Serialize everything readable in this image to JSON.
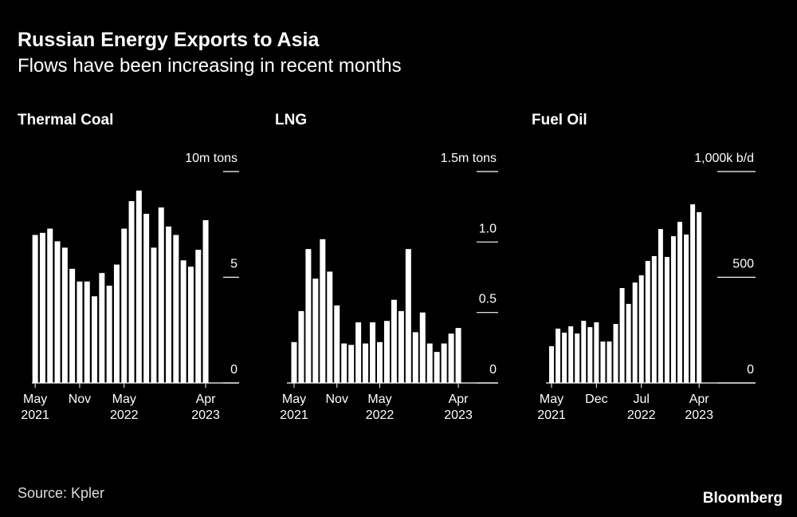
{
  "title": "Russian Energy Exports to Asia",
  "subtitle": "Flows have been increasing in recent months",
  "source": "Source: Kpler",
  "brand": "Bloomberg",
  "chart_data": [
    {
      "type": "bar",
      "title": "Thermal Coal",
      "color": "#ffffff",
      "categories": [
        "May 2021",
        null,
        null,
        null,
        null,
        null,
        "Nov",
        null,
        null,
        null,
        null,
        null,
        "May 2022",
        null,
        null,
        null,
        null,
        null,
        null,
        null,
        null,
        null,
        null,
        "Apr 2023"
      ],
      "values": [
        7.0,
        7.1,
        7.3,
        6.7,
        6.4,
        5.4,
        4.8,
        4.8,
        4.1,
        5.2,
        4.6,
        5.6,
        7.3,
        8.6,
        9.1,
        8.0,
        6.4,
        8.3,
        7.4,
        7.0,
        5.8,
        5.5,
        6.3,
        7.7
      ],
      "ylim": [
        0,
        10
      ],
      "yticks": [
        0,
        5,
        {
          "value": 10,
          "label": "10m tons"
        }
      ]
    },
    {
      "type": "bar",
      "title": "LNG",
      "color": "#ffffff",
      "categories": [
        "May 2021",
        null,
        null,
        null,
        null,
        null,
        "Nov",
        null,
        null,
        null,
        null,
        null,
        "May 2022",
        null,
        null,
        null,
        null,
        null,
        null,
        null,
        null,
        null,
        null,
        "Apr 2023"
      ],
      "values": [
        0.29,
        0.51,
        0.95,
        0.74,
        1.02,
        0.79,
        0.55,
        0.28,
        0.27,
        0.43,
        0.28,
        0.43,
        0.29,
        0.44,
        0.59,
        0.51,
        0.95,
        0.36,
        0.5,
        0.28,
        0.22,
        0.28,
        0.35,
        0.39
      ],
      "ylim": [
        0,
        1.5
      ],
      "yticks": [
        0,
        0.5,
        {
          "value": 1.0,
          "label": "1.0"
        },
        {
          "value": 1.5,
          "label": "1.5m tons"
        }
      ]
    },
    {
      "type": "bar",
      "title": "Fuel Oil",
      "color": "#ffffff",
      "categories": [
        "May 2021",
        null,
        null,
        null,
        null,
        null,
        null,
        "Dec",
        null,
        null,
        null,
        null,
        null,
        null,
        "Jul 2022",
        null,
        null,
        null,
        null,
        null,
        null,
        null,
        null,
        "Apr 2023"
      ],
      "values": [
        174,
        257,
        238,
        268,
        234,
        294,
        264,
        287,
        196,
        196,
        279,
        449,
        374,
        475,
        509,
        577,
        600,
        728,
        596,
        694,
        762,
        702,
        845,
        808
      ],
      "ylim": [
        0,
        1000
      ],
      "yticks": [
        0,
        500,
        {
          "value": 1000,
          "label": "1,000k b/d"
        }
      ]
    }
  ]
}
